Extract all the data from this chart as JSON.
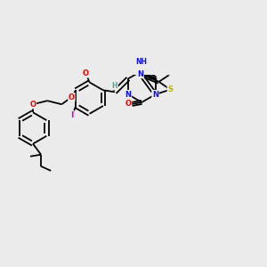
{
  "background_color": "#ebebeb",
  "figsize": [
    3.0,
    3.0
  ],
  "dpi": 100,
  "atom_colors": {
    "C": "#000000",
    "H": "#4fa8a0",
    "N": "#1010ee",
    "O": "#ee0000",
    "S": "#b8b800",
    "I": "#dd00dd"
  },
  "bond_color": "#000000",
  "bond_lw": 1.3
}
